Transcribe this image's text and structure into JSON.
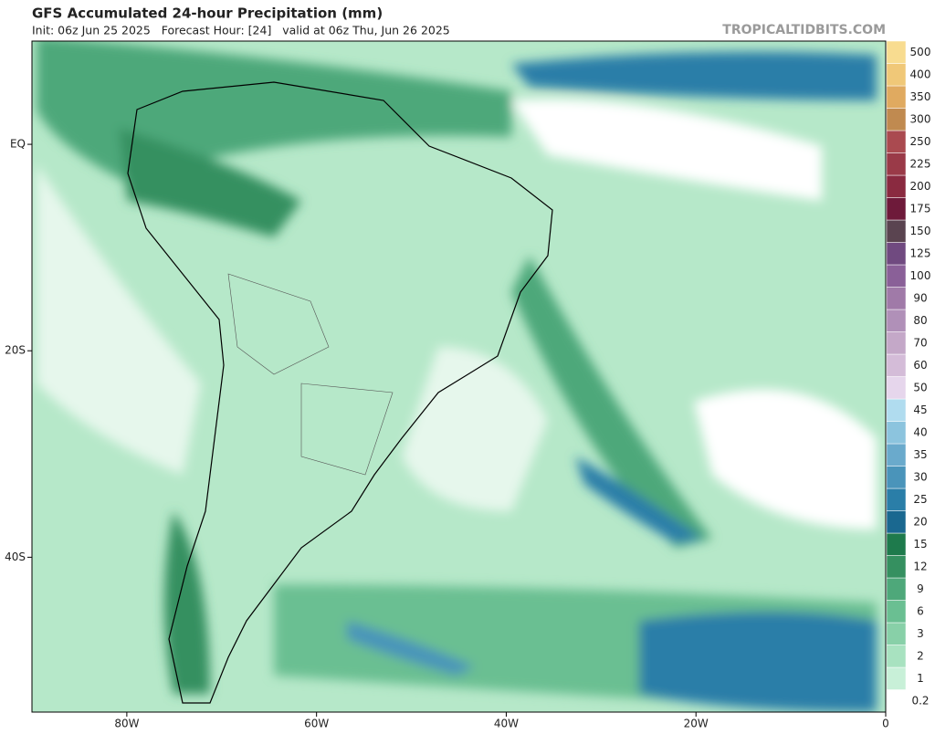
{
  "header": {
    "title": "GFS Accumulated 24-hour Precipitation (mm)",
    "subtitle": "Init: 06z Jun 25 2025   Forecast Hour: [24]   valid at 06z Thu, Jun 26 2025",
    "watermark": "TROPICALTIDBITS.COM"
  },
  "map": {
    "xlim": [
      -90,
      0
    ],
    "ylim": [
      10,
      -55
    ],
    "xticks": [
      {
        "value": -80,
        "label": "80W"
      },
      {
        "value": -60,
        "label": "60W"
      },
      {
        "value": -40,
        "label": "40W"
      },
      {
        "value": -20,
        "label": "20W"
      },
      0
    ],
    "yticks": [
      {
        "value": 0,
        "label": "EQ"
      },
      {
        "value": -20,
        "label": "20S"
      },
      {
        "value": -40,
        "label": "40S"
      }
    ]
  },
  "colorbar": {
    "levels": [
      0.2,
      1,
      2,
      3,
      6,
      9,
      12,
      15,
      20,
      25,
      30,
      35,
      40,
      45,
      50,
      60,
      70,
      80,
      90,
      100,
      125,
      150,
      175,
      200,
      225,
      250,
      300,
      350,
      400,
      500
    ],
    "colors": [
      "#ffffff",
      "#c8f0d8",
      "#a8e2c0",
      "#88d0a8",
      "#6abf92",
      "#4ea87a",
      "#359060",
      "#1e7a4c",
      "#1a6890",
      "#2a7ea8",
      "#4a94ba",
      "#6aaacc",
      "#8cc4de",
      "#b0dcef",
      "#e6d6ec",
      "#d4bcd8",
      "#c4a8c8",
      "#b090b8",
      "#a07aa8",
      "#8a6098",
      "#704a80",
      "#5a4450",
      "#6e1a3a",
      "#8a2a40",
      "#9a3a48",
      "#aa4a50",
      "#c08a50",
      "#e0aa60",
      "#f0c878",
      "#f8dc90"
    ]
  }
}
